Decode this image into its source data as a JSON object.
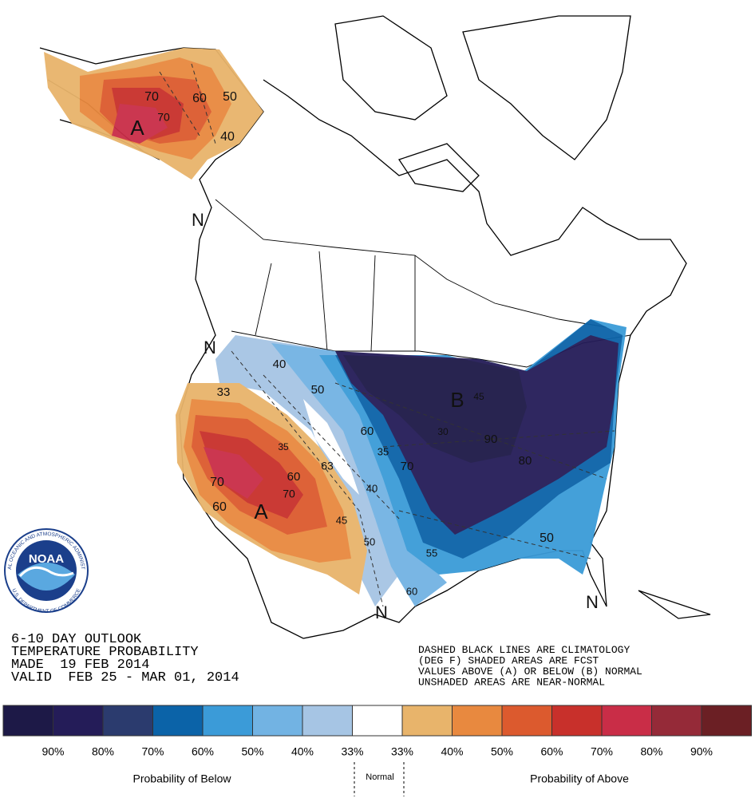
{
  "logo": {
    "name": "NOAA",
    "agency": "NATIONAL OCEANIC AND ATMOSPHERIC ADMINISTRATION",
    "department": "U.S. DEPARTMENT OF COMMERCE"
  },
  "outlook": {
    "lines": [
      "6-10 DAY OUTLOOK",
      "TEMPERATURE PROBABILITY",
      "MADE  19 FEB 2014",
      "VALID  FEB 25 - MAR 01, 2014"
    ]
  },
  "notes": {
    "lines": [
      "DASHED BLACK LINES ARE CLIMATOLOGY",
      "(DEG F) SHADED AREAS ARE FCST",
      "VALUES ABOVE (A) OR BELOW (B) NORMAL",
      "UNSHADED AREAS ARE NEAR-NORMAL"
    ]
  },
  "map_labels": [
    "A",
    "70",
    "70",
    "60",
    "50",
    "40",
    "N",
    "N",
    "33",
    "40",
    "50",
    "60",
    "35",
    "70",
    "60",
    "A",
    "60",
    "70",
    "63",
    "45",
    "40",
    "50",
    "35",
    "70",
    "55",
    "60",
    "B",
    "45",
    "30",
    "90",
    "80",
    "50",
    "N",
    "N"
  ],
  "legend": {
    "colors": [
      "#1d1947",
      "#241c58",
      "#2b3b6e",
      "#0b63a8",
      "#3b9bd8",
      "#72b3e3",
      "#a6c5e4",
      "#ffffff",
      "#e8b46b",
      "#e8893f",
      "#dc5a2e",
      "#c8302b",
      "#c92d47",
      "#952a38",
      "#6b1f24"
    ],
    "labels": [
      "90%",
      "80%",
      "70%",
      "60%",
      "50%",
      "40%",
      "33%",
      "33%",
      "40%",
      "50%",
      "60%",
      "70%",
      "80%",
      "90%"
    ],
    "below": "Probability of Below",
    "normal": "Normal",
    "above": "Probability of Above"
  }
}
